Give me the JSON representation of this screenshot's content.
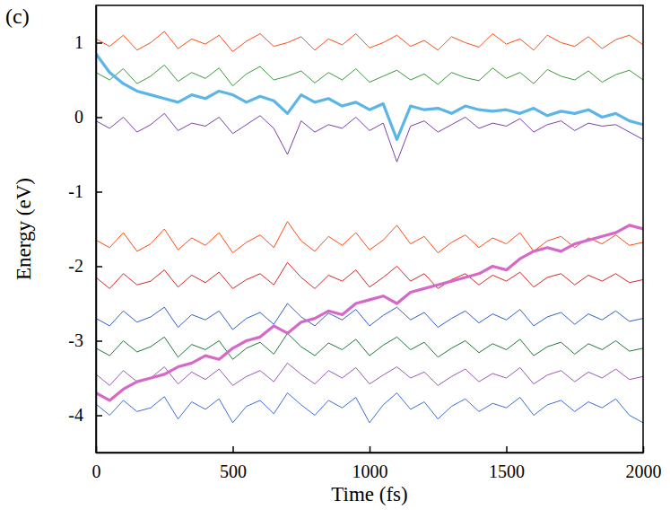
{
  "chart_data": {
    "type": "line",
    "title": "(c)",
    "x_label": "Time (fs)",
    "y_label": "Energy (eV)",
    "xlim": [
      0,
      2000
    ],
    "xticks": [
      0,
      500,
      1000,
      1500,
      2000
    ],
    "ylim": [
      -4.5,
      1.5
    ],
    "yticks": [
      -4,
      -3,
      -2,
      -1,
      0,
      1
    ],
    "x": [
      0,
      50,
      100,
      150,
      200,
      250,
      300,
      350,
      400,
      450,
      500,
      550,
      600,
      650,
      700,
      750,
      800,
      850,
      900,
      950,
      1000,
      1050,
      1100,
      1150,
      1200,
      1250,
      1300,
      1350,
      1400,
      1450,
      1500,
      1550,
      1600,
      1650,
      1700,
      1750,
      1800,
      1850,
      1900,
      1950,
      2000
    ],
    "series": [
      {
        "color": "#ff4a12",
        "line_style": "solid",
        "values": [
          1.05,
          0.95,
          1.1,
          0.9,
          1.0,
          1.15,
          0.92,
          1.05,
          0.98,
          1.1,
          0.88,
          1.02,
          1.12,
          0.95,
          1.0,
          1.08,
          0.9,
          1.05,
          0.97,
          1.12,
          0.93,
          1.0,
          1.1,
          0.95,
          1.03,
          0.9,
          1.08,
          1.0,
          0.94,
          1.12,
          0.98,
          1.05,
          0.9,
          1.1,
          1.0,
          0.95,
          1.08,
          0.92,
          1.04,
          1.1,
          0.97
        ]
      },
      {
        "color": "#3a9a3a",
        "line_style": "solid",
        "values": [
          0.6,
          0.5,
          0.65,
          0.45,
          0.55,
          0.7,
          0.48,
          0.6,
          0.52,
          0.66,
          0.42,
          0.58,
          0.68,
          0.5,
          0.55,
          0.62,
          0.46,
          0.6,
          0.5,
          0.65,
          0.47,
          0.55,
          0.63,
          0.5,
          0.58,
          0.44,
          0.6,
          0.53,
          0.49,
          0.66,
          0.52,
          0.6,
          0.45,
          0.64,
          0.55,
          0.5,
          0.62,
          0.47,
          0.57,
          0.63,
          0.5
        ]
      },
      {
        "color": "#7a3fb0",
        "line_style": "solid",
        "values": [
          -0.05,
          -0.15,
          0.0,
          -0.2,
          -0.1,
          0.05,
          -0.18,
          -0.08,
          -0.12,
          0.0,
          -0.22,
          -0.1,
          0.02,
          -0.15,
          -0.5,
          -0.05,
          -0.2,
          -0.1,
          -0.15,
          0.0,
          -0.18,
          -0.08,
          -0.6,
          -0.12,
          -0.05,
          -0.2,
          -0.1,
          0.0,
          -0.15,
          -0.08,
          -0.12,
          -0.02,
          -0.2,
          -0.1,
          -0.05,
          -0.18,
          -0.08,
          -0.12,
          -0.1,
          -0.2,
          -0.3
        ]
      },
      {
        "color": "#ff4a12",
        "line_style": "solid",
        "values": [
          -1.65,
          -1.75,
          -1.55,
          -1.8,
          -1.7,
          -1.5,
          -1.78,
          -1.62,
          -1.72,
          -1.55,
          -1.82,
          -1.68,
          -1.58,
          -1.75,
          -1.4,
          -1.66,
          -1.8,
          -1.6,
          -1.72,
          -1.55,
          -1.78,
          -1.65,
          -1.45,
          -1.7,
          -1.6,
          -1.82,
          -1.68,
          -1.58,
          -1.75,
          -1.62,
          -1.7,
          -1.55,
          -1.8,
          -1.66,
          -1.6,
          -1.75,
          -1.62,
          -1.7,
          -1.58,
          -1.72,
          -1.68
        ]
      },
      {
        "color": "#d62728",
        "line_style": "solid",
        "values": [
          -2.15,
          -2.3,
          -2.1,
          -2.25,
          -2.2,
          -2.05,
          -2.28,
          -2.12,
          -2.22,
          -2.08,
          -2.3,
          -2.18,
          -2.1,
          -2.25,
          -1.95,
          -2.15,
          -2.3,
          -2.12,
          -2.2,
          -2.05,
          -2.28,
          -2.15,
          -2.0,
          -2.2,
          -2.1,
          -2.3,
          -2.18,
          -2.1,
          -2.25,
          -2.12,
          -2.2,
          -2.08,
          -2.28,
          -2.15,
          -2.1,
          -2.25,
          -2.12,
          -2.2,
          -2.1,
          -2.22,
          -2.18
        ]
      },
      {
        "color": "#2f5fd0",
        "line_style": "solid",
        "values": [
          -2.7,
          -2.8,
          -2.6,
          -2.75,
          -2.68,
          -2.55,
          -2.82,
          -2.65,
          -2.72,
          -2.6,
          -2.85,
          -2.7,
          -2.62,
          -2.78,
          -2.5,
          -2.68,
          -2.8,
          -2.63,
          -2.72,
          -2.58,
          -2.8,
          -2.66,
          -2.55,
          -2.72,
          -2.62,
          -2.82,
          -2.7,
          -2.6,
          -2.76,
          -2.64,
          -2.72,
          -2.58,
          -2.8,
          -2.68,
          -2.62,
          -2.78,
          -2.64,
          -2.72,
          -2.6,
          -2.74,
          -2.7
        ]
      },
      {
        "color": "#1f7a3a",
        "line_style": "solid",
        "values": [
          -3.1,
          -3.2,
          -3.0,
          -3.15,
          -3.08,
          -2.95,
          -3.22,
          -3.05,
          -3.12,
          -3.0,
          -3.25,
          -3.1,
          -3.02,
          -3.18,
          -2.9,
          -3.08,
          -3.2,
          -3.03,
          -3.12,
          -2.98,
          -3.2,
          -3.06,
          -2.95,
          -3.12,
          -3.02,
          -3.22,
          -3.1,
          -3.0,
          -3.16,
          -3.04,
          -3.12,
          -2.98,
          -3.2,
          -3.08,
          -3.02,
          -3.18,
          -3.04,
          -3.12,
          -3.0,
          -3.14,
          -3.1
        ]
      },
      {
        "color": "#9b59b6",
        "line_style": "solid",
        "values": [
          -3.45,
          -3.6,
          -3.4,
          -3.55,
          -3.5,
          -3.35,
          -3.58,
          -3.42,
          -3.52,
          -3.38,
          -3.6,
          -3.48,
          -3.4,
          -3.55,
          -3.3,
          -3.45,
          -3.58,
          -3.4,
          -3.5,
          -3.36,
          -3.58,
          -3.46,
          -3.35,
          -3.5,
          -3.42,
          -3.6,
          -3.48,
          -3.38,
          -3.55,
          -3.44,
          -3.5,
          -3.36,
          -3.58,
          -3.46,
          -3.4,
          -3.55,
          -3.42,
          -3.5,
          -3.38,
          -3.52,
          -3.48
        ]
      },
      {
        "color": "#3b6fd8",
        "line_style": "solid",
        "values": [
          -3.85,
          -4.0,
          -3.8,
          -3.95,
          -3.9,
          -3.75,
          -4.05,
          -3.82,
          -3.92,
          -3.78,
          -4.1,
          -3.88,
          -3.8,
          -3.98,
          -3.7,
          -3.86,
          -4.0,
          -3.8,
          -3.9,
          -3.76,
          -4.1,
          -3.86,
          -3.7,
          -3.92,
          -3.82,
          -4.05,
          -3.88,
          -3.78,
          -3.95,
          -3.84,
          -3.9,
          -3.76,
          -4.0,
          -3.86,
          -3.8,
          -3.95,
          -3.82,
          -3.9,
          -3.78,
          -4.0,
          -4.1
        ]
      },
      {
        "color": "#5bb5e8",
        "line_style": "thick",
        "values": [
          0.85,
          0.6,
          0.45,
          0.35,
          0.3,
          0.25,
          0.2,
          0.3,
          0.25,
          0.35,
          0.3,
          0.2,
          0.28,
          0.22,
          0.05,
          0.3,
          0.2,
          0.25,
          0.15,
          0.2,
          0.1,
          0.18,
          -0.3,
          0.15,
          0.1,
          0.12,
          0.05,
          0.15,
          0.1,
          0.08,
          0.1,
          0.05,
          0.12,
          0.02,
          0.08,
          0.05,
          0.1,
          0.0,
          0.05,
          -0.05,
          -0.1
        ]
      },
      {
        "color": "#d669c8",
        "line_style": "thick",
        "values": [
          -3.7,
          -3.8,
          -3.65,
          -3.55,
          -3.5,
          -3.45,
          -3.35,
          -3.3,
          -3.2,
          -3.25,
          -3.1,
          -3.0,
          -2.95,
          -2.8,
          -2.9,
          -2.75,
          -2.7,
          -2.6,
          -2.65,
          -2.5,
          -2.45,
          -2.4,
          -2.5,
          -2.35,
          -2.3,
          -2.25,
          -2.2,
          -2.15,
          -2.1,
          -2.0,
          -2.05,
          -1.9,
          -1.8,
          -1.75,
          -1.8,
          -1.7,
          -1.65,
          -1.6,
          -1.55,
          -1.45,
          -1.5
        ]
      }
    ]
  }
}
